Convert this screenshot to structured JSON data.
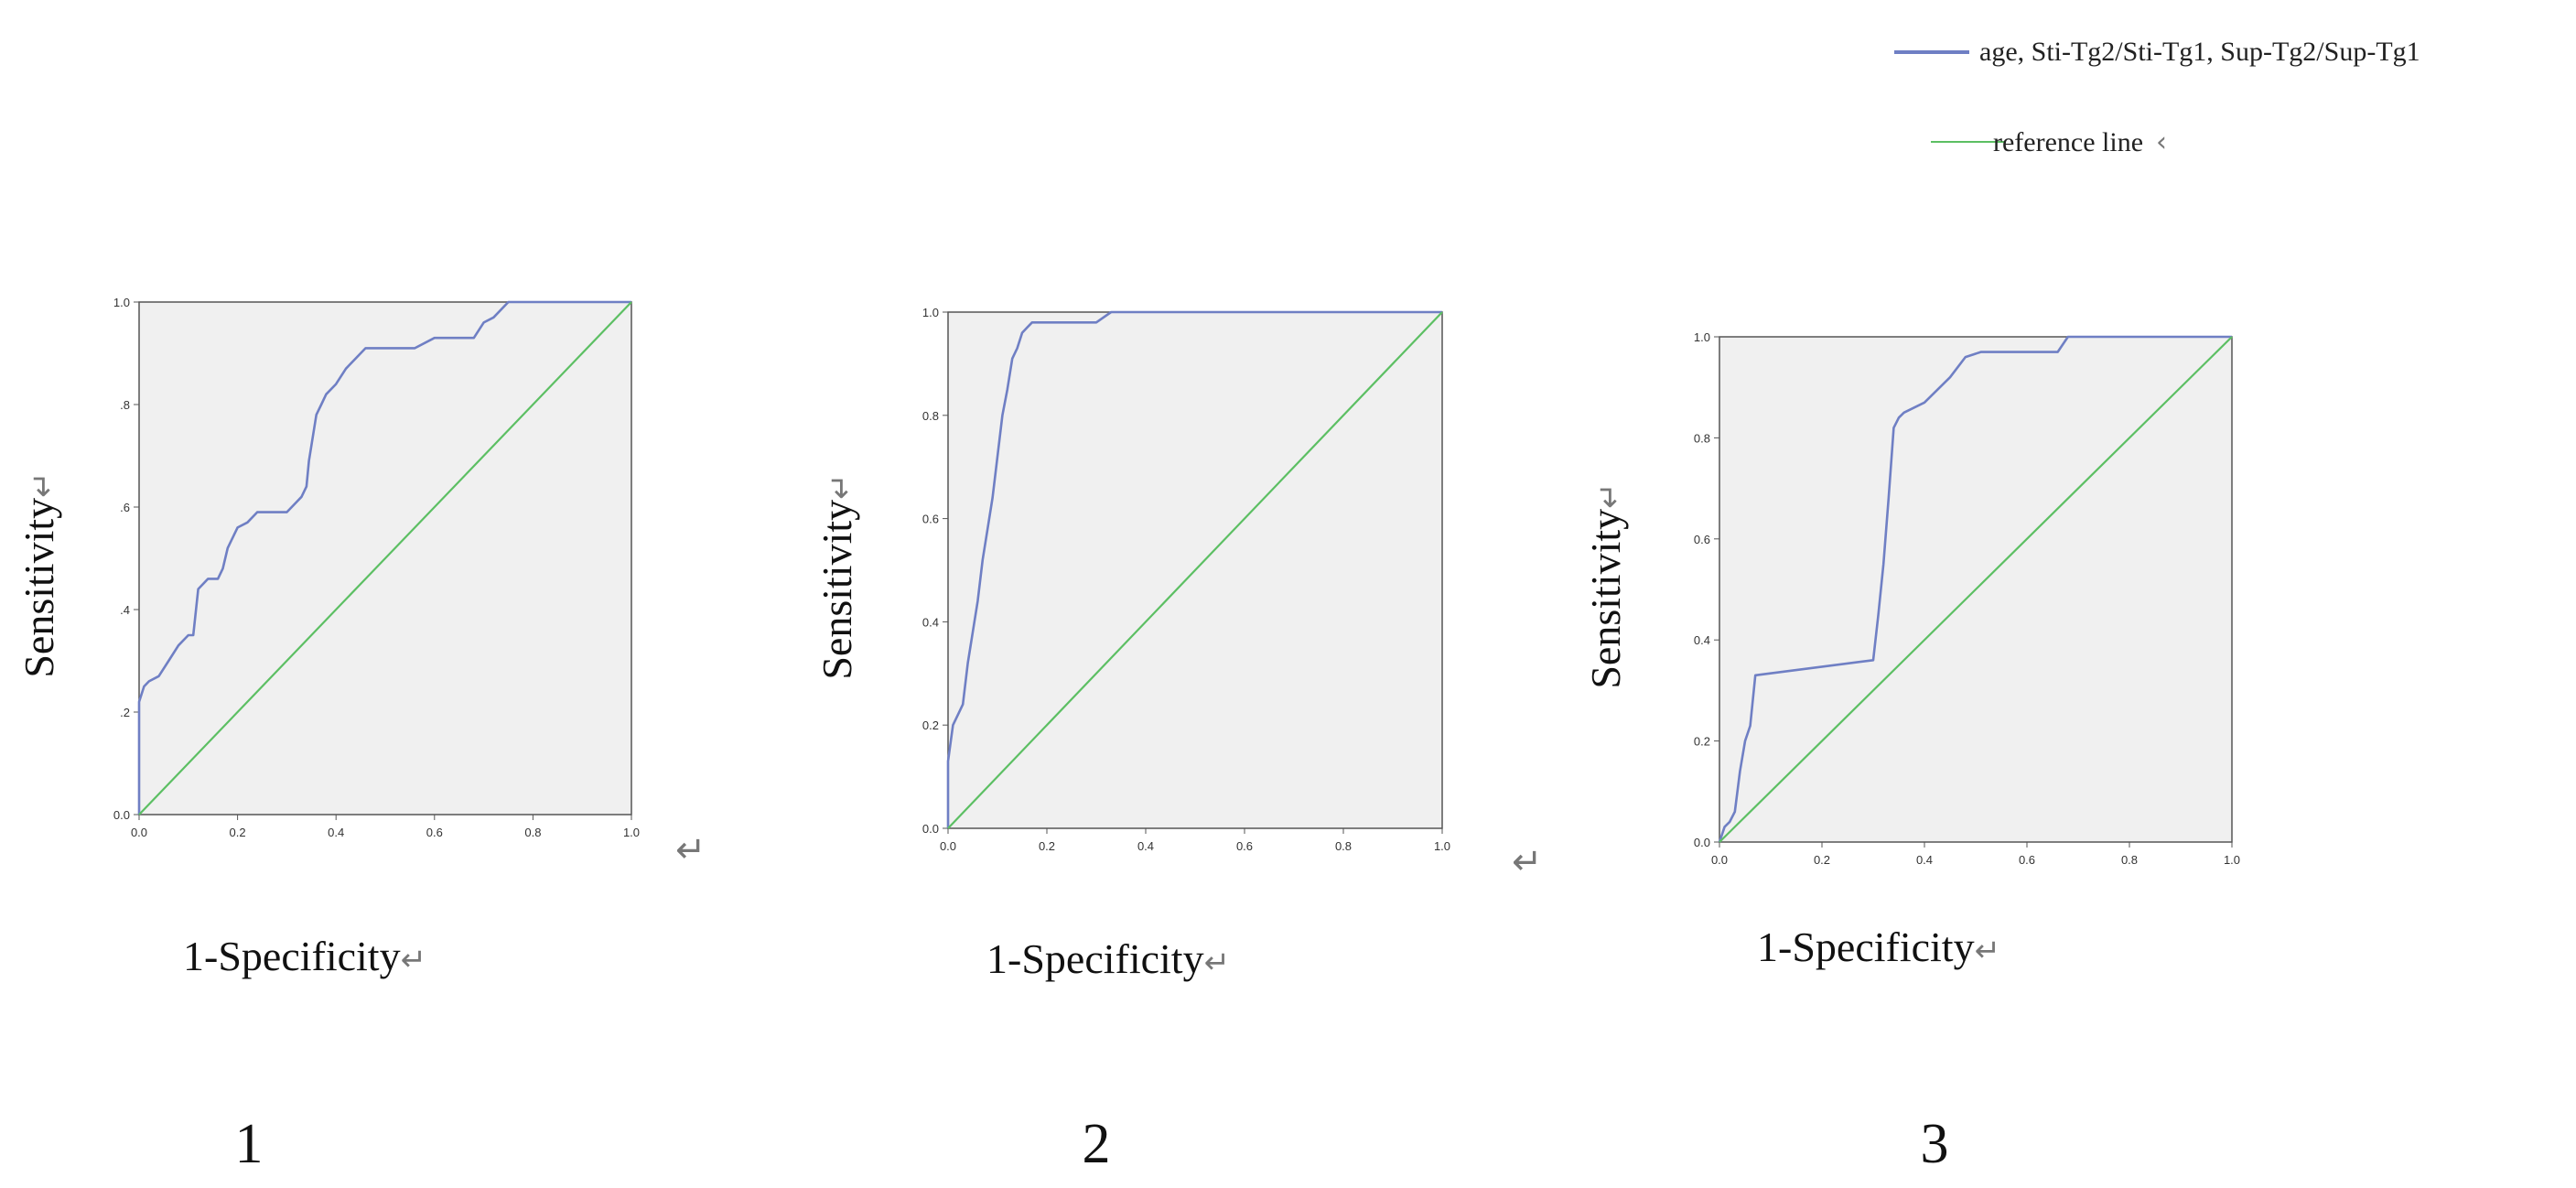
{
  "legend": {
    "items": [
      {
        "label": "age, Sti-Tg2/Sti-Tg1, Sup-Tg2/Sup-Tg1",
        "color": "#6f7fc4"
      },
      {
        "label": "reference line",
        "color": "#5cbf63"
      }
    ],
    "reference_suffix": "‹"
  },
  "return_glyph": "↵",
  "chart_data": [
    {
      "type": "line",
      "panel_label": "1",
      "xlabel": "1-Specificity",
      "ylabel": "Sensitivity",
      "xlim": [
        0,
        1
      ],
      "ylim": [
        0,
        1
      ],
      "x_ticks": [
        0,
        0.2,
        0.4,
        0.6,
        0.8,
        1.0
      ],
      "x_tick_labels": [
        "0.0",
        "0.2",
        "0.4",
        "0.6",
        "0.8",
        "1.0"
      ],
      "y_ticks": [
        0,
        0.2,
        0.4,
        0.6,
        0.8,
        1.0
      ],
      "y_tick_labels": [
        "0.0",
        ".2",
        ".4",
        ".6",
        ".8",
        "1.0"
      ],
      "x_trailing_glyph": true,
      "series": [
        {
          "role": "roc",
          "color": "#6f7fc4",
          "x": [
            0,
            0,
            0.01,
            0.02,
            0.04,
            0.06,
            0.08,
            0.1,
            0.11,
            0.12,
            0.14,
            0.16,
            0.17,
            0.18,
            0.2,
            0.22,
            0.24,
            0.26,
            0.3,
            0.32,
            0.33,
            0.34,
            0.345,
            0.35,
            0.36,
            0.37,
            0.38,
            0.4,
            0.42,
            0.44,
            0.46,
            0.5,
            0.56,
            0.6,
            0.62,
            0.68,
            0.7,
            0.72,
            0.75,
            0.8,
            1.0
          ],
          "y": [
            0,
            0.22,
            0.25,
            0.26,
            0.27,
            0.3,
            0.33,
            0.35,
            0.35,
            0.44,
            0.46,
            0.46,
            0.48,
            0.52,
            0.56,
            0.57,
            0.59,
            0.59,
            0.59,
            0.61,
            0.62,
            0.64,
            0.69,
            0.72,
            0.78,
            0.8,
            0.82,
            0.84,
            0.87,
            0.89,
            0.91,
            0.91,
            0.91,
            0.93,
            0.93,
            0.93,
            0.96,
            0.97,
            1.0,
            1.0,
            1.0
          ]
        },
        {
          "role": "reference",
          "color": "#5cbf63",
          "x": [
            0,
            1
          ],
          "y": [
            0,
            1
          ]
        }
      ]
    },
    {
      "type": "line",
      "panel_label": "2",
      "xlabel": "1-Specificity",
      "ylabel": "Sensitivity",
      "xlim": [
        0,
        1
      ],
      "ylim": [
        0,
        1
      ],
      "x_ticks": [
        0,
        0.2,
        0.4,
        0.6,
        0.8,
        1.0
      ],
      "x_tick_labels": [
        "0.0",
        "0.2",
        "0.4",
        "0.6",
        "0.8",
        "1.0"
      ],
      "y_ticks": [
        0,
        0.2,
        0.4,
        0.6,
        0.8,
        1.0
      ],
      "y_tick_labels": [
        "0.0",
        "0.2",
        "0.4",
        "0.6",
        "0.8",
        "1.0"
      ],
      "x_trailing_glyph": true,
      "series": [
        {
          "role": "roc",
          "color": "#6f7fc4",
          "x": [
            0,
            0,
            0.01,
            0.02,
            0.03,
            0.04,
            0.05,
            0.06,
            0.07,
            0.08,
            0.09,
            0.1,
            0.11,
            0.12,
            0.13,
            0.14,
            0.15,
            0.16,
            0.17,
            0.18,
            0.2,
            0.25,
            0.3,
            0.33,
            0.4,
            0.6,
            0.8,
            1.0
          ],
          "y": [
            0,
            0.13,
            0.2,
            0.22,
            0.24,
            0.32,
            0.38,
            0.44,
            0.52,
            0.58,
            0.64,
            0.72,
            0.8,
            0.85,
            0.91,
            0.93,
            0.96,
            0.97,
            0.98,
            0.98,
            0.98,
            0.98,
            0.98,
            1.0,
            1.0,
            1.0,
            1.0,
            1.0
          ]
        },
        {
          "role": "reference",
          "color": "#5cbf63",
          "x": [
            0,
            1
          ],
          "y": [
            0,
            1
          ]
        }
      ]
    },
    {
      "type": "line",
      "panel_label": "3",
      "xlabel": "1-Specificity",
      "ylabel": "Sensitivity",
      "xlim": [
        0,
        1
      ],
      "ylim": [
        0,
        1
      ],
      "x_ticks": [
        0,
        0.2,
        0.4,
        0.6,
        0.8,
        1.0
      ],
      "x_tick_labels": [
        "0.0",
        "0.2",
        "0.4",
        "0.6",
        "0.8",
        "1.0"
      ],
      "y_ticks": [
        0,
        0.2,
        0.4,
        0.6,
        0.8,
        1.0
      ],
      "y_tick_labels": [
        "0.0",
        "0.2",
        "0.4",
        "0.6",
        "0.8",
        "1.0"
      ],
      "x_trailing_glyph": false,
      "series": [
        {
          "role": "roc",
          "color": "#6f7fc4",
          "x": [
            0,
            0.01,
            0.02,
            0.03,
            0.04,
            0.05,
            0.06,
            0.07,
            0.3,
            0.31,
            0.32,
            0.33,
            0.34,
            0.35,
            0.36,
            0.38,
            0.4,
            0.45,
            0.48,
            0.51,
            0.6,
            0.66,
            0.68,
            0.75,
            0.9,
            1.0
          ],
          "y": [
            0,
            0.03,
            0.04,
            0.06,
            0.14,
            0.2,
            0.23,
            0.33,
            0.36,
            0.45,
            0.55,
            0.68,
            0.82,
            0.84,
            0.85,
            0.86,
            0.87,
            0.92,
            0.96,
            0.97,
            0.97,
            0.97,
            1.0,
            1.0,
            1.0,
            1.0
          ]
        },
        {
          "role": "reference",
          "color": "#5cbf63",
          "x": [
            0,
            1
          ],
          "y": [
            0,
            1
          ]
        }
      ]
    }
  ]
}
